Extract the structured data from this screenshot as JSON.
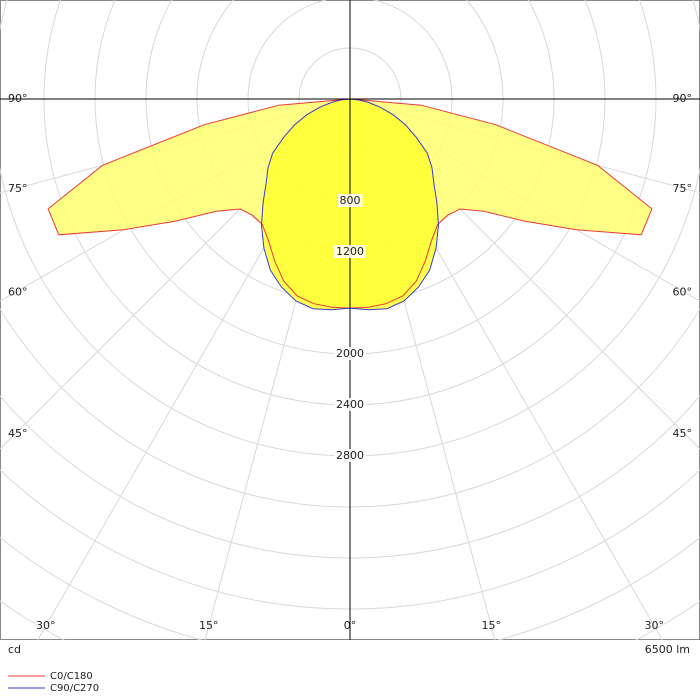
{
  "chart_data": {
    "type": "polar",
    "x": [
      -90,
      -85,
      -80,
      -75,
      -70,
      -65,
      -60,
      -55,
      -50,
      -45,
      -40,
      -35,
      -30,
      -25,
      -20,
      -15,
      -10,
      -5,
      0,
      5,
      10,
      15,
      20,
      25,
      30,
      35,
      40,
      45,
      50,
      55,
      60,
      65,
      70,
      75,
      80,
      85,
      90
    ],
    "series": [
      {
        "name": "C0/C180",
        "color": "#e83a3a",
        "fill": "#ffff70",
        "values": [
          0,
          560,
          1160,
          2010,
          2520,
          2520,
          2050,
          1670,
          1370,
          1220,
          1190,
          1200,
          1280,
          1400,
          1520,
          1600,
          1630,
          1640,
          1640,
          1640,
          1630,
          1600,
          1520,
          1400,
          1280,
          1200,
          1190,
          1220,
          1370,
          1670,
          2050,
          2520,
          2520,
          2010,
          1160,
          560,
          0
        ]
      },
      {
        "name": "C90/C270",
        "color": "#3a3ad0",
        "fill": "#ffff30",
        "values": [
          0,
          60,
          140,
          240,
          360,
          480,
          600,
          740,
          840,
          930,
          1060,
          1210,
          1350,
          1480,
          1570,
          1640,
          1670,
          1660,
          1640,
          1660,
          1670,
          1640,
          1570,
          1480,
          1350,
          1210,
          1060,
          930,
          840,
          740,
          600,
          480,
          360,
          240,
          140,
          60,
          0
        ]
      }
    ],
    "rlim": [
      0,
      4200
    ],
    "rticks": [
      800,
      1200,
      2000,
      2400,
      2800
    ],
    "angle_ticks": [
      {
        "value": 0,
        "label": "0°"
      },
      {
        "value": 15,
        "label": "15°"
      },
      {
        "value": 30,
        "label": "30°"
      },
      {
        "value": 45,
        "label": "45°"
      },
      {
        "value": 60,
        "label": "60°"
      },
      {
        "value": 75,
        "label": "75°"
      },
      {
        "value": 90,
        "label": "90°"
      }
    ],
    "unit_label": "cd",
    "flux_label": "6500 lm",
    "grid": true
  }
}
